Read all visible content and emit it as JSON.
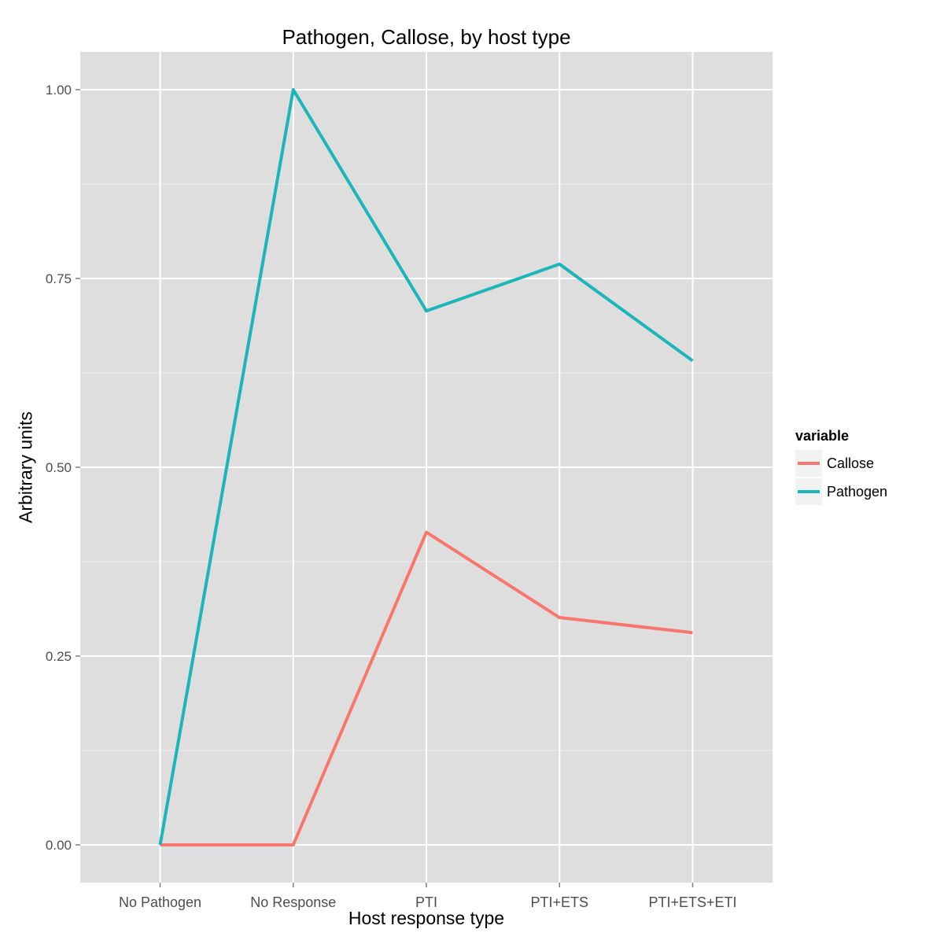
{
  "chart_data": {
    "type": "line",
    "title": "Pathogen, Callose, by host type",
    "xlabel": "Host response type",
    "ylabel": "Arbitrary units",
    "categories": [
      "No Pathogen",
      "No Response",
      "PTI",
      "PTI+ETS",
      "PTI+ETS+ETI"
    ],
    "series": [
      {
        "name": "Callose",
        "color": "#f8766d",
        "values": [
          0.0,
          0.0,
          0.414,
          0.301,
          0.281
        ]
      },
      {
        "name": "Pathogen",
        "color": "#1cb5b9",
        "values": [
          0.0,
          1.0,
          0.707,
          0.769,
          0.641
        ]
      }
    ],
    "ylim": [
      -0.05,
      1.05
    ],
    "yticks": [
      0.0,
      0.25,
      0.5,
      0.75,
      1.0
    ],
    "ytick_labels": [
      "0.00",
      "0.25",
      "0.50",
      "0.75",
      "1.00"
    ],
    "grid": true,
    "legend": {
      "title": "variable",
      "position": "right"
    },
    "panel_background": "#dedede"
  }
}
